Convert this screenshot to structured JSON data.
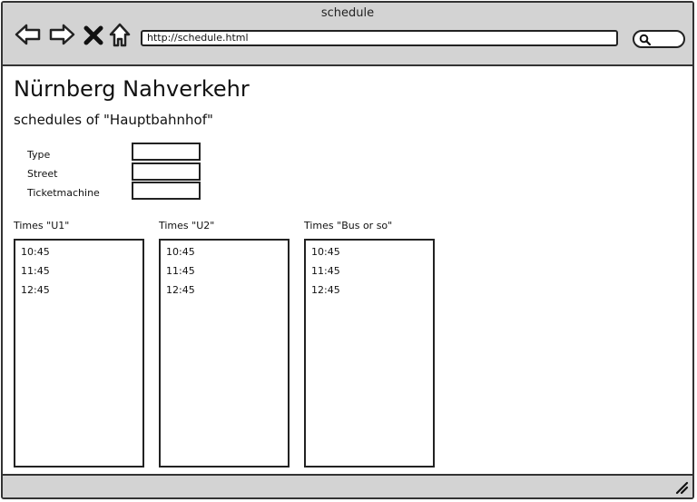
{
  "window": {
    "title": "schedule"
  },
  "toolbar": {
    "back_icon": "arrow-left-icon",
    "forward_icon": "arrow-right-icon",
    "stop_icon": "close-x-icon",
    "home_icon": "home-icon",
    "url": "http://schedule.html",
    "search_icon": "search-icon"
  },
  "page": {
    "title": "Nürnberg Nahverkehr",
    "subtitle": "schedules of \"Hauptbahnhof\""
  },
  "form": {
    "fields": [
      {
        "label": "Type",
        "value": ""
      },
      {
        "label": "Street",
        "value": ""
      },
      {
        "label": "Ticketmachine",
        "value": ""
      }
    ]
  },
  "lists": [
    {
      "label": "Times \"U1\"",
      "items": [
        "10:45",
        "11:45",
        "12:45"
      ]
    },
    {
      "label": "Times \"U2\"",
      "items": [
        "10:45",
        "11:45",
        "12:45"
      ]
    },
    {
      "label": "Times \"Bus or so\"",
      "items": [
        "10:45",
        "11:45",
        "12:45"
      ]
    }
  ],
  "colors": {
    "chrome": "#d3d3d3",
    "border": "#333333",
    "background": "#ffffff"
  }
}
